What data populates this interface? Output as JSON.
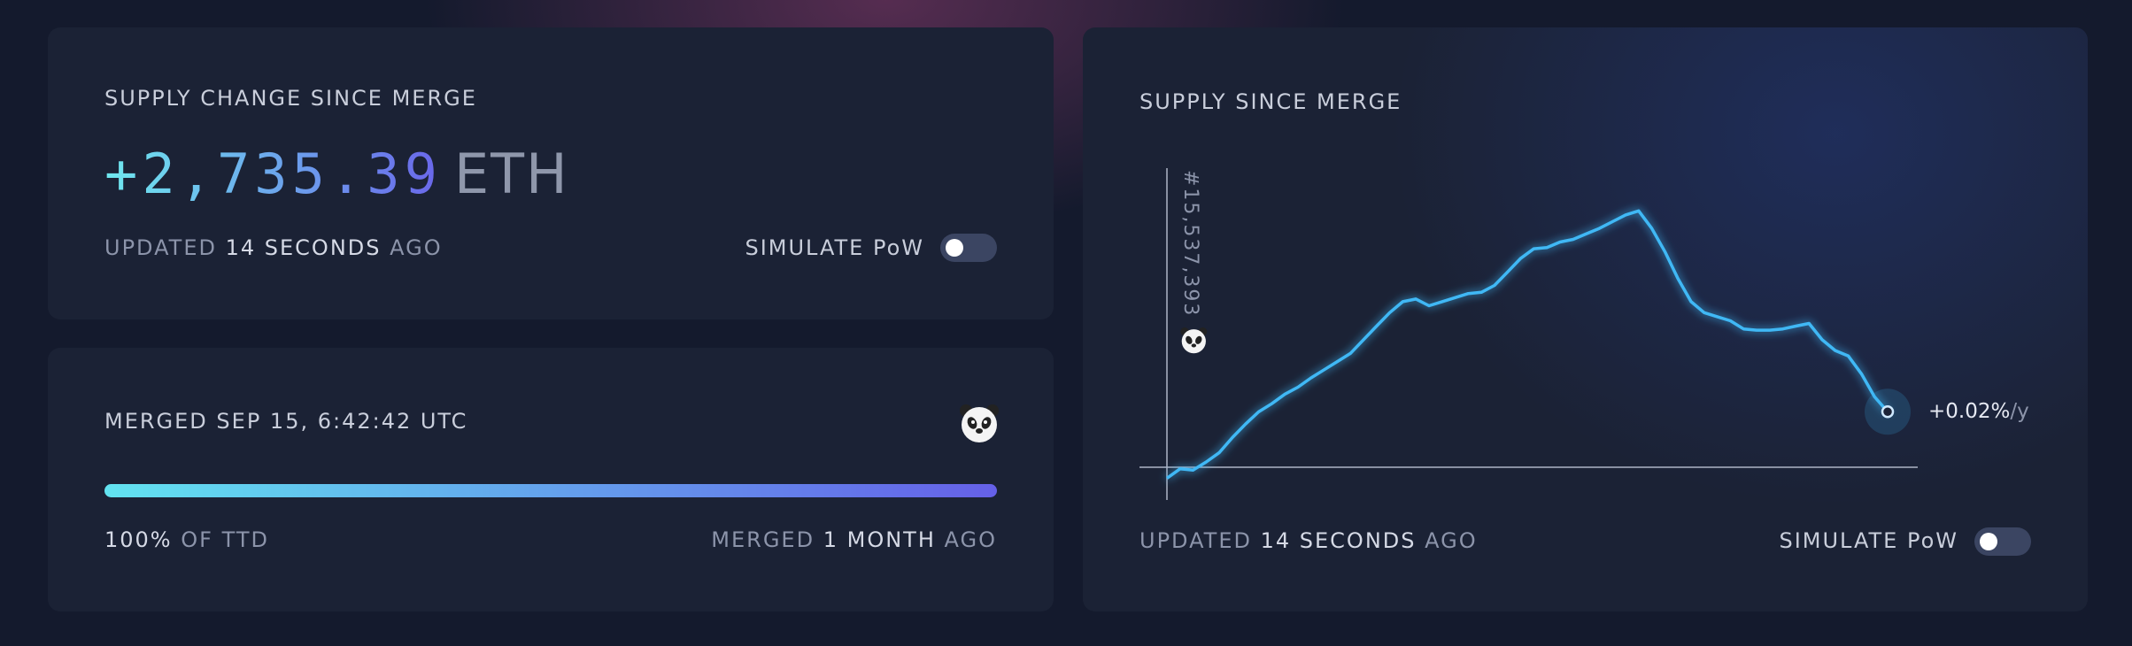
{
  "supply_change_card": {
    "title": "SUPPLY CHANGE SINCE MERGE",
    "amount": "+2,735.39",
    "unit": "ETH",
    "updated_prefix": "UPDATED",
    "updated_time": "14 SECONDS",
    "updated_suffix": "AGO",
    "toggle_label": "SIMULATE PoW"
  },
  "merge_card": {
    "title": "MERGED SEP 15, 6:42:42 UTC",
    "progress_value": "100%",
    "progress_label": "OF TTD",
    "merged_prefix": "MERGED",
    "merged_time": "1 MONTH",
    "merged_suffix": "AGO"
  },
  "chart_data": {
    "type": "line",
    "title": "SUPPLY SINCE MERGE",
    "annotation": "#15,537,393",
    "end_label": "+0.02%",
    "end_label_unit": "/y",
    "values": [
      -530,
      -70,
      -130,
      270,
      730,
      1470,
      2130,
      2730,
      3130,
      3600,
      3940,
      4400,
      4800,
      5200,
      5600,
      6270,
      6940,
      7600,
      8140,
      8270,
      7940,
      8140,
      8340,
      8540,
      8600,
      8940,
      9600,
      10270,
      10740,
      10800,
      11070,
      11200,
      11470,
      11740,
      12070,
      12400,
      12600,
      11740,
      10600,
      9270,
      8140,
      7600,
      7400,
      7200,
      6800,
      6740,
      6740,
      6800,
      6940,
      7070,
      6270,
      5740,
      5470,
      4600,
      3470,
      2735.39
    ],
    "ylim": [
      -1600,
      14700
    ],
    "color": "#3fb8f5"
  },
  "chart_card_footer": {
    "updated_prefix": "UPDATED",
    "updated_time": "14 SECONDS",
    "updated_suffix": "AGO",
    "toggle_label": "SIMULATE PoW"
  }
}
